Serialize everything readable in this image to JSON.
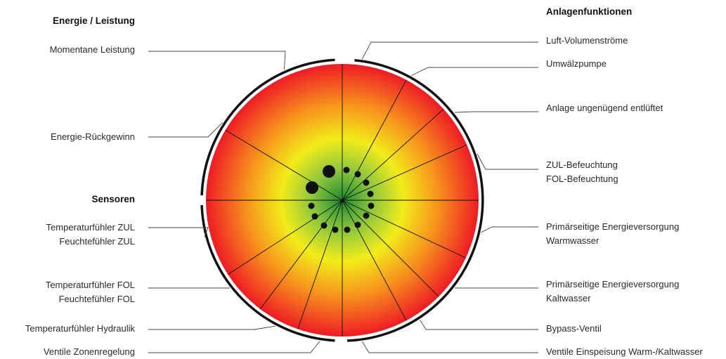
{
  "headings": {
    "energie": "Energie / Leistung",
    "sensoren": "Sensoren",
    "anlagen": "Anlagenfunktionen"
  },
  "left_labels": [
    {
      "line1": "Momentane Leistung",
      "line2": ""
    },
    {
      "line1": "Energie-Rückgewinn",
      "line2": ""
    },
    {
      "line1": "Temperaturfühler ZUL",
      "line2": "Feuchtefühler ZUL"
    },
    {
      "line1": "Temperaturfühler FOL",
      "line2": "Feuchtefühler FOL"
    },
    {
      "line1": "Temperaturfühler  Hydraulik",
      "line2": ""
    },
    {
      "line1": "Ventile Zonenregelung",
      "line2": ""
    }
  ],
  "right_labels": [
    {
      "line1": "Luft-Volumenströme",
      "line2": ""
    },
    {
      "line1": "Umwälzpumpe",
      "line2": ""
    },
    {
      "line1": "Anlage ungenügend entlüftet",
      "line2": ""
    },
    {
      "line1": "ZUL-Befeuchtung",
      "line2": "FOL-Befeuchtung"
    },
    {
      "line1": "Primärseitige Energieversorgung",
      "line2": "Warmwasser"
    },
    {
      "line1": "Primärseitige Energieversorgung",
      "line2": "Kaltwasser"
    },
    {
      "line1": "Bypass-Ventil",
      "line2": ""
    },
    {
      "line1": "Ventile Einspeisung Warm-/Kaltwasser",
      "line2": ""
    }
  ],
  "colors": {
    "center": "#1e8a2e",
    "green_light": "#8cc63f",
    "yellow": "#f2ec1a",
    "orange": "#f7941d",
    "red": "#ee1c25",
    "lines": "#111111",
    "leader": "#444444"
  }
}
